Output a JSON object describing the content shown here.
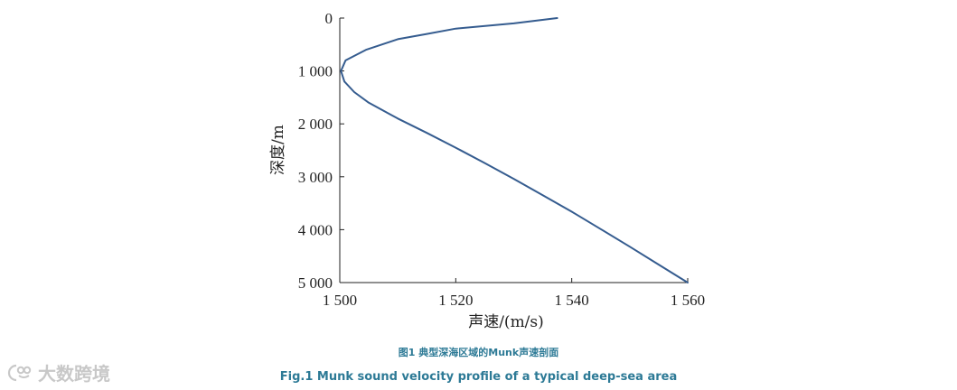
{
  "chart_data": {
    "type": "line",
    "xlabel": "声速/(m/s)",
    "ylabel": "深度/m",
    "xlim": [
      1500,
      1560
    ],
    "ylim": [
      0,
      5000
    ],
    "y_inverted": true,
    "grid": false,
    "x_ticks": [
      {
        "value": 1500,
        "label": "1 500"
      },
      {
        "value": 1520,
        "label": "1 520"
      },
      {
        "value": 1540,
        "label": "1 540"
      },
      {
        "value": 1560,
        "label": "1 560"
      }
    ],
    "y_ticks": [
      {
        "value": 0,
        "label": "0"
      },
      {
        "value": 1000,
        "label": "1 000"
      },
      {
        "value": 2000,
        "label": "2 000"
      },
      {
        "value": 3000,
        "label": "3 000"
      },
      {
        "value": 4000,
        "label": "4 000"
      },
      {
        "value": 5000,
        "label": "5 000"
      }
    ],
    "series": [
      {
        "color": "#355c8f",
        "x": [
          1537.5,
          1530,
          1520,
          1515,
          1510,
          1504.5,
          1501,
          1500.2,
          1500.8,
          1502.5,
          1505,
          1510,
          1515,
          1520,
          1525,
          1530,
          1535,
          1540,
          1545,
          1550,
          1555,
          1560
        ],
        "y": [
          0,
          100,
          200,
          300,
          400,
          600,
          800,
          1000,
          1200,
          1400,
          1600,
          1900,
          2170,
          2450,
          2740,
          3040,
          3350,
          3660,
          3990,
          4320,
          4660,
          5000
        ]
      }
    ]
  },
  "caption_cn": "图1 典型深海区域的Munk声速剖面",
  "caption_en": "Fig.1 Munk sound velocity profile of a typical deep-sea area",
  "watermark": {
    "text": "大数跨境",
    "icon": "watermark-logo-icon"
  }
}
